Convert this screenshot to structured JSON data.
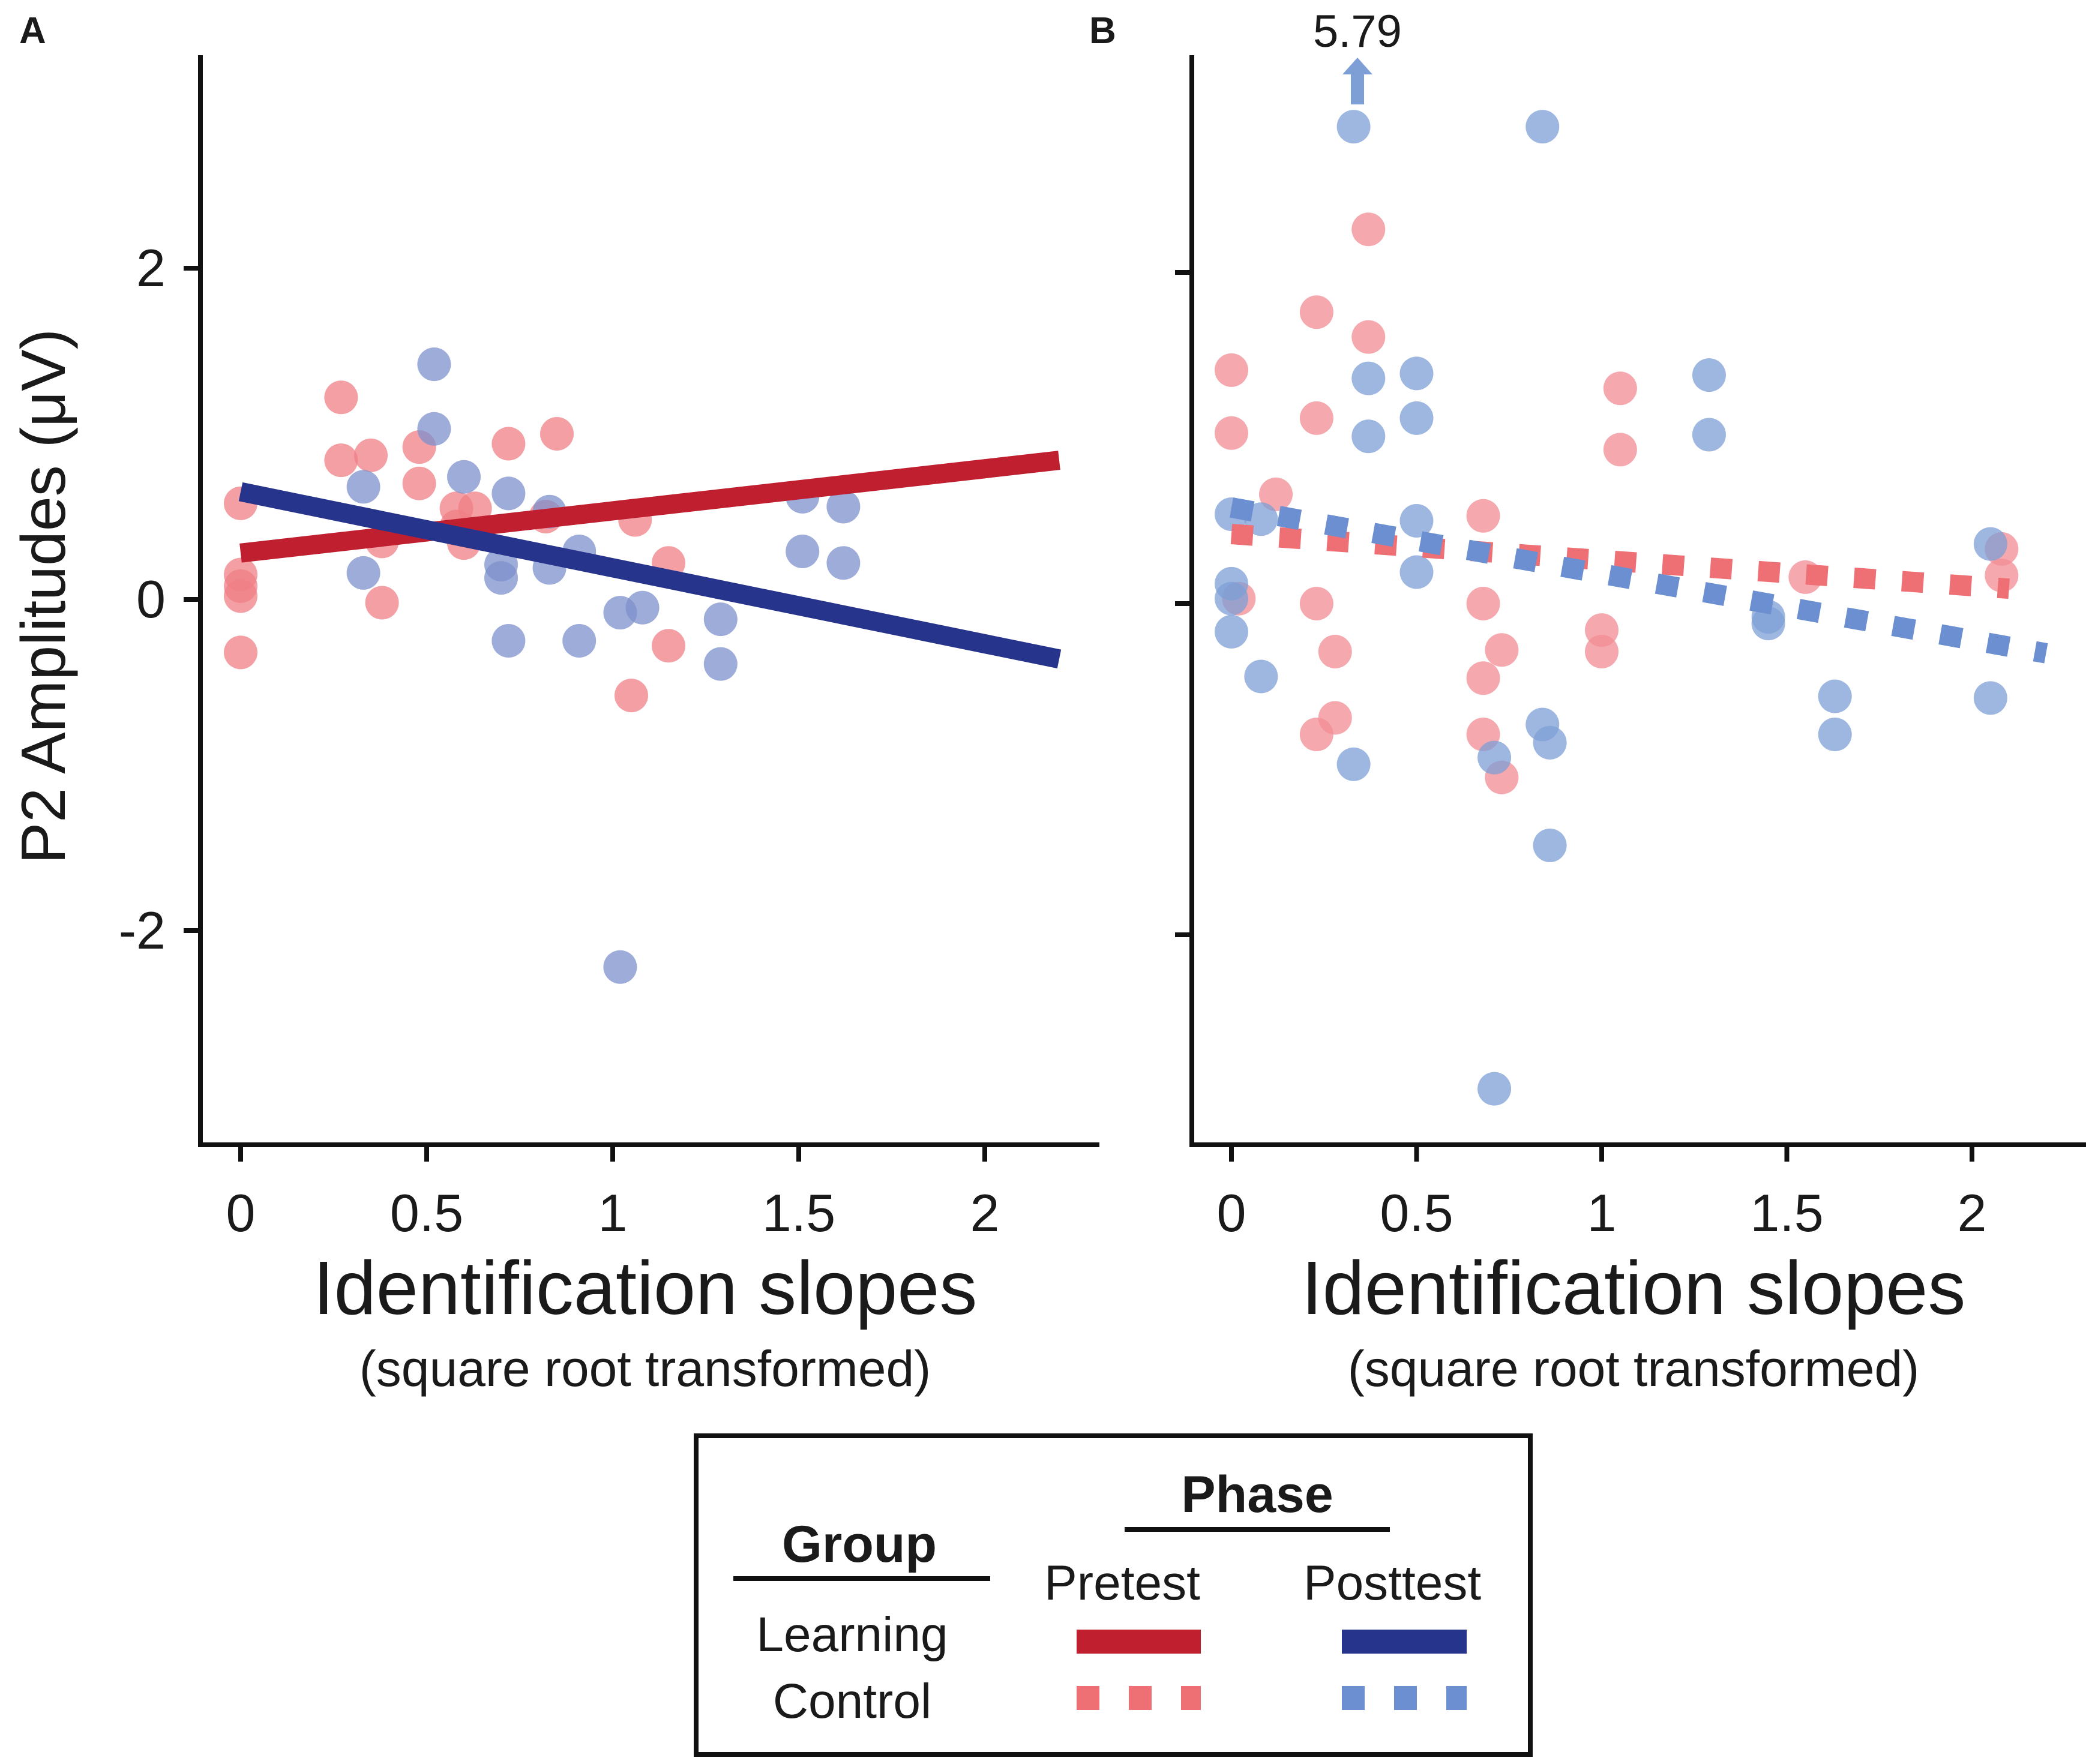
{
  "chart_data": [
    {
      "panel": "A",
      "type": "scatter",
      "xlabel": "Identification slopes",
      "xlabel_sub": "(square root transformed)",
      "ylabel": "P2 Amplitudes (μV)",
      "xlim": [
        -0.1,
        2.3
      ],
      "ylim": [
        -3.3,
        3.3
      ],
      "xticks": [
        0,
        0.5,
        1,
        1.5,
        2
      ],
      "xtick_labels": [
        "0",
        "0.5",
        "1",
        "1.5",
        "2"
      ],
      "yticks": [
        -2,
        0,
        2
      ],
      "ytick_labels": [
        "-2",
        "0",
        "2"
      ],
      "series": [
        {
          "name": "Learning Pretest",
          "color": "#ef7f86",
          "points": [
            [
              0,
              0.58
            ],
            [
              0,
              0.15
            ],
            [
              0,
              0.08
            ],
            [
              0,
              0.02
            ],
            [
              0,
              -0.32
            ],
            [
              0.27,
              1.22
            ],
            [
              0.27,
              0.84
            ],
            [
              0.35,
              0.87
            ],
            [
              0.38,
              0.35
            ],
            [
              0.38,
              -0.02
            ],
            [
              0.48,
              0.92
            ],
            [
              0.48,
              0.7
            ],
            [
              0.58,
              0.55
            ],
            [
              0.58,
              0.44
            ],
            [
              0.6,
              0.34
            ],
            [
              0.63,
              0.55
            ],
            [
              0.72,
              0.94
            ],
            [
              0.85,
              1.0
            ],
            [
              0.82,
              0.5
            ],
            [
              1.06,
              0.48
            ],
            [
              1.05,
              -0.58
            ],
            [
              1.15,
              0.22
            ],
            [
              1.15,
              -0.28
            ]
          ]
        },
        {
          "name": "Learning Posttest",
          "color": "#7d90cc",
          "points": [
            [
              0.33,
              0.68
            ],
            [
              0.33,
              0.16
            ],
            [
              0.52,
              1.42
            ],
            [
              0.52,
              1.03
            ],
            [
              0.6,
              0.74
            ],
            [
              0.72,
              0.64
            ],
            [
              0.7,
              0.21
            ],
            [
              0.7,
              0.13
            ],
            [
              0.72,
              -0.25
            ],
            [
              0.83,
              0.53
            ],
            [
              0.83,
              0.19
            ],
            [
              0.91,
              0.29
            ],
            [
              0.91,
              -0.25
            ],
            [
              1.02,
              -0.08
            ],
            [
              1.08,
              -0.05
            ],
            [
              1.02,
              -2.22
            ],
            [
              1.29,
              -0.12
            ],
            [
              1.29,
              -0.39
            ],
            [
              1.51,
              0.62
            ],
            [
              1.51,
              0.29
            ],
            [
              1.62,
              0.56
            ],
            [
              1.62,
              0.22
            ]
          ]
        }
      ],
      "fit_lines": [
        {
          "name": "Learning Pretest fit",
          "color": "#c01f30",
          "style": "solid",
          "x": [
            0,
            2.2
          ],
          "y": [
            0.28,
            0.84
          ]
        },
        {
          "name": "Learning Posttest fit",
          "color": "#27348b",
          "style": "solid",
          "x": [
            0,
            2.2
          ],
          "y": [
            0.65,
            -0.36
          ]
        }
      ]
    },
    {
      "panel": "B",
      "type": "scatter",
      "xlabel": "Identification slopes",
      "xlabel_sub": "(square root transformed)",
      "xlim": [
        -0.1,
        2.3
      ],
      "ylim": [
        -3.3,
        3.3
      ],
      "xticks": [
        0,
        0.5,
        1,
        1.5,
        2
      ],
      "xtick_labels": [
        "0",
        "0.5",
        "1",
        "1.5",
        "2"
      ],
      "yticks": [
        -2,
        0,
        2
      ],
      "annotation": {
        "text": "5.79",
        "x": 0.33,
        "note": "off-scale value indicated by upward arrow"
      },
      "series": [
        {
          "name": "Control Pretest",
          "color": "#f28c93",
          "points": [
            [
              0,
              1.41
            ],
            [
              0,
              1.03
            ],
            [
              0.02,
              0.03
            ],
            [
              0.12,
              0.66
            ],
            [
              0.23,
              1.76
            ],
            [
              0.23,
              1.12
            ],
            [
              0.23,
              0.0
            ],
            [
              0.23,
              -0.79
            ],
            [
              0.28,
              -0.29
            ],
            [
              0.28,
              -0.69
            ],
            [
              0.37,
              2.26
            ],
            [
              0.37,
              1.61
            ],
            [
              0.68,
              0.53
            ],
            [
              0.68,
              0.0
            ],
            [
              0.68,
              -0.45
            ],
            [
              0.68,
              -0.79
            ],
            [
              0.73,
              -0.28
            ],
            [
              0.73,
              -1.05
            ],
            [
              1.0,
              -0.16
            ],
            [
              1.0,
              -0.29
            ],
            [
              1.05,
              1.3
            ],
            [
              1.05,
              0.93
            ],
            [
              1.55,
              0.16
            ],
            [
              2.08,
              0.33
            ],
            [
              2.08,
              0.17
            ]
          ]
        },
        {
          "name": "Control Posttest",
          "color": "#7e9fd6",
          "points": [
            [
              0,
              0.54
            ],
            [
              0,
              0.12
            ],
            [
              0,
              0.03
            ],
            [
              0,
              -0.17
            ],
            [
              0.08,
              0.51
            ],
            [
              0.08,
              -0.44
            ],
            [
              0.33,
              2.88
            ],
            [
              0.33,
              -0.97
            ],
            [
              0.37,
              1.36
            ],
            [
              0.37,
              1.01
            ],
            [
              0.5,
              1.39
            ],
            [
              0.5,
              1.12
            ],
            [
              0.5,
              0.5
            ],
            [
              0.5,
              0.19
            ],
            [
              0.71,
              -0.93
            ],
            [
              0.71,
              -2.93
            ],
            [
              0.84,
              2.88
            ],
            [
              0.84,
              -0.73
            ],
            [
              0.86,
              -0.84
            ],
            [
              0.86,
              -1.46
            ],
            [
              1.29,
              1.38
            ],
            [
              1.29,
              1.02
            ],
            [
              1.45,
              -0.08
            ],
            [
              1.45,
              -0.12
            ],
            [
              1.63,
              -0.56
            ],
            [
              1.63,
              -0.79
            ],
            [
              2.05,
              0.36
            ],
            [
              2.05,
              -0.57
            ]
          ]
        }
      ],
      "fit_lines": [
        {
          "name": "Control Pretest fit",
          "color": "#ee6f74",
          "style": "dashed",
          "x": [
            0,
            2.1
          ],
          "y": [
            0.42,
            0.09
          ]
        },
        {
          "name": "Control Posttest fit",
          "color": "#6b8fd0",
          "style": "dashed",
          "x": [
            0,
            2.2
          ],
          "y": [
            0.58,
            -0.3
          ]
        }
      ]
    }
  ],
  "legend": {
    "group_title": "Group",
    "phase_title": "Phase",
    "pretest_label": "Pretest",
    "posttest_label": "Posttest",
    "learning_label": "Learning",
    "control_label": "Control",
    "learning_pre_color": "#c01f30",
    "learning_post_color": "#27348b",
    "control_pre_color": "#ee6f74",
    "control_post_color": "#6b8fd0"
  }
}
